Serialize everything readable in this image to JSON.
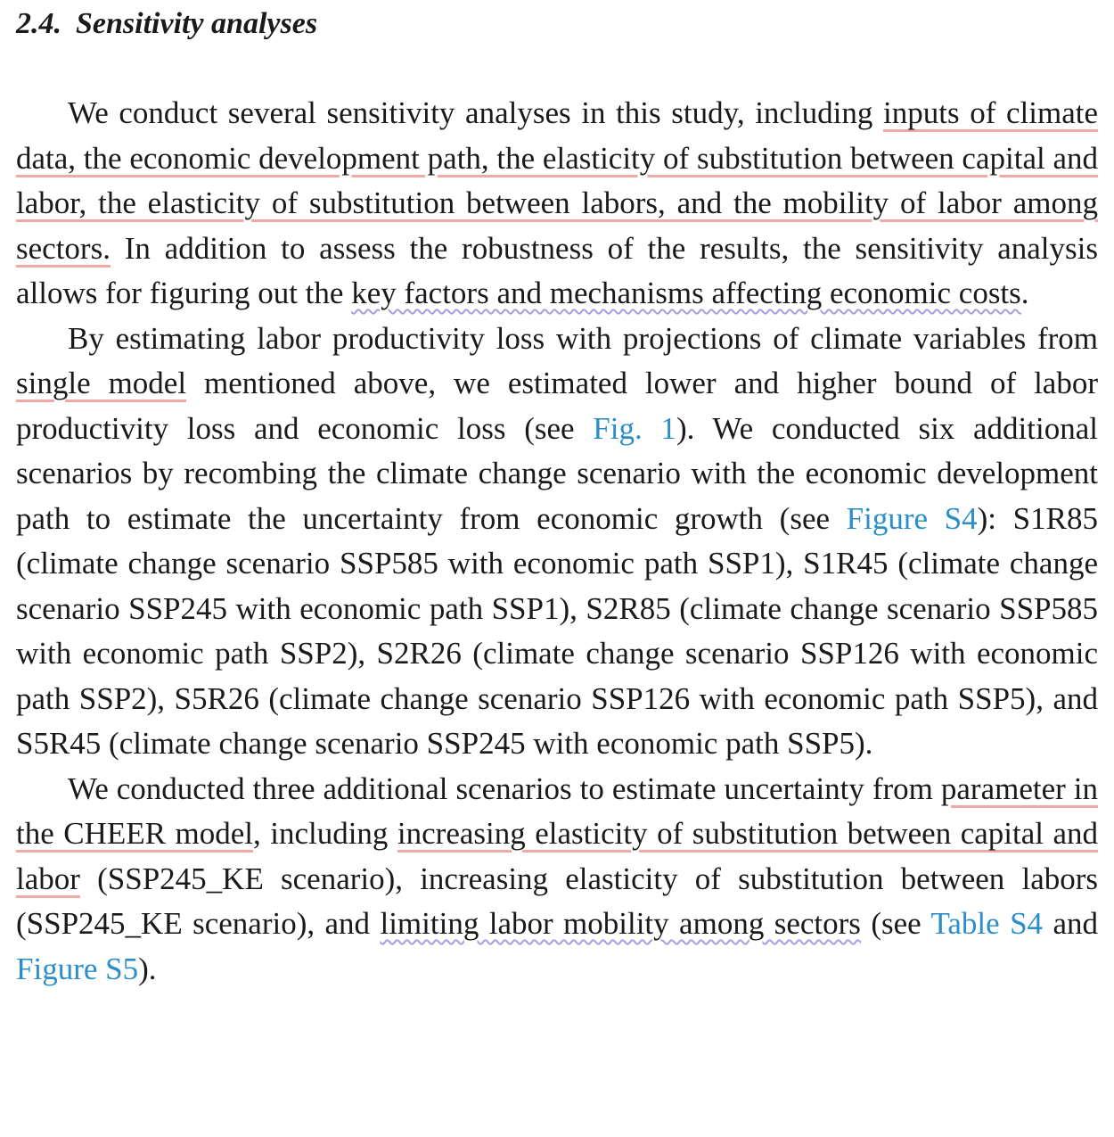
{
  "section": {
    "number": "2.4.",
    "title": "Sensitivity analyses"
  },
  "p1": {
    "s1": "We conduct several sensitivity analyses in this study, including ",
    "h1": "in­puts of climate data, the economic development path, the elasticity of substitution between capital and labor, the elasticity of substitution between labors, and the mobility of labor among sectors.",
    "s2": " In addition to assess the robustness of the results, the sensitivity analysis allows for figuring out the ",
    "h2": "key factors and mechanisms affecting economic costs",
    "s3": "."
  },
  "p2": {
    "s1": "By estimating labor productivity loss with projections of climate variables from ",
    "h1": "single model",
    "s2": " mentioned above, we estimated lower and higher bound of labor productivity loss and economic loss (see ",
    "link1": "Fig. 1",
    "s3": "). We conducted six additional scenarios by recombing the climate change scenario with the economic development path to estimate the uncer­tainty from economic growth (see ",
    "link2": "Figure S4",
    "s4": "): S1R85 (climate change scenario SSP585 with economic path SSP1), S1R45 (climate change scenario SSP245 with economic path SSP1), S2R85 (climate change scenario SSP585 with economic path SSP2), S2R26 (climate change scenario SSP126 with economic path SSP2), S5R26 (climate change scenario SSP126 with economic path SSP5), and S5R45 (climate change scenario SSP245 with economic path SSP5)."
  },
  "p3": {
    "s1": "We conducted three additional scenarios to estimate uncertainty from ",
    "h1": "parameter in the CHEER model",
    "s2": ", including ",
    "h2": "increasing elasticity of substitution between capital and labor",
    "s3": " (SSP245_KE scenario), increasing elasticity of substitution between labors (SSP245_KE scenario), and ",
    "h3": "limiting labor mobility among sectors",
    "s4": " (see ",
    "link1": "Table S4",
    "s5": " and ",
    "link2": "Figure S5",
    "s6": ")."
  },
  "colors": {
    "link": "#2a8ecb",
    "underline_red": "#f2a7a7",
    "underline_wavy": "#a99ce0"
  }
}
